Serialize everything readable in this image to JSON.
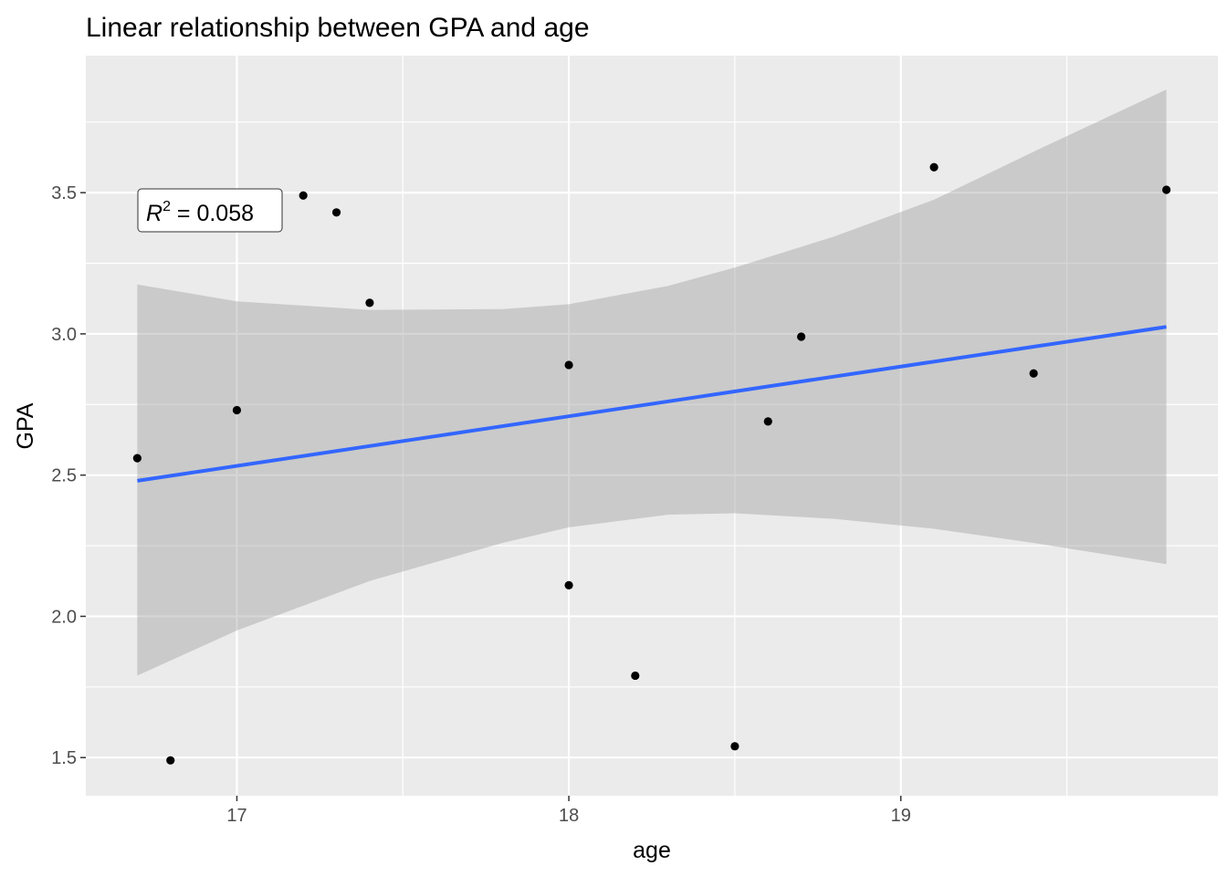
{
  "chart_data": {
    "type": "scatter",
    "title": "Linear relationship between GPA and age",
    "xlabel": "age",
    "ylabel": "GPA",
    "xlim": [
      16.545,
      19.955
    ],
    "ylim": [
      1.365,
      3.985
    ],
    "x_ticks": [
      17,
      18,
      19
    ],
    "x_tick_labels": [
      "17",
      "18",
      "19"
    ],
    "y_ticks": [
      1.5,
      2.0,
      2.5,
      3.0,
      3.5
    ],
    "y_tick_labels": [
      "1.5",
      "2.0",
      "2.5",
      "3.0",
      "3.5"
    ],
    "grid": true,
    "legend": "none",
    "points": [
      {
        "x": 16.7,
        "y": 2.56
      },
      {
        "x": 16.8,
        "y": 1.49
      },
      {
        "x": 17.0,
        "y": 2.73
      },
      {
        "x": 17.2,
        "y": 3.49
      },
      {
        "x": 17.3,
        "y": 3.43
      },
      {
        "x": 17.4,
        "y": 3.11
      },
      {
        "x": 18.0,
        "y": 2.89
      },
      {
        "x": 18.0,
        "y": 2.11
      },
      {
        "x": 18.2,
        "y": 1.79
      },
      {
        "x": 18.5,
        "y": 1.54
      },
      {
        "x": 18.6,
        "y": 2.69
      },
      {
        "x": 18.7,
        "y": 2.99
      },
      {
        "x": 19.1,
        "y": 3.59
      },
      {
        "x": 19.4,
        "y": 2.86
      },
      {
        "x": 19.8,
        "y": 3.51
      }
    ],
    "regression_line": {
      "x": [
        16.7,
        19.8
      ],
      "y": [
        2.48,
        3.025
      ]
    },
    "confidence_band": {
      "x": [
        16.7,
        17.0,
        17.4,
        17.8,
        18.0,
        18.3,
        18.5,
        18.8,
        19.1,
        19.4,
        19.8
      ],
      "upper": [
        3.175,
        3.115,
        3.085,
        3.088,
        3.105,
        3.17,
        3.235,
        3.345,
        3.475,
        3.645,
        3.865
      ],
      "lower": [
        1.79,
        1.95,
        2.125,
        2.26,
        2.315,
        2.36,
        2.365,
        2.345,
        2.31,
        2.26,
        2.185
      ]
    },
    "annotation": {
      "prefix": "R",
      "superscript": "2",
      "suffix": " = 0.058"
    },
    "colors": {
      "panel_bg": "#ebebeb",
      "grid": "#ffffff",
      "line": "#3366ff",
      "band": "#999999",
      "point": "#000000"
    }
  }
}
